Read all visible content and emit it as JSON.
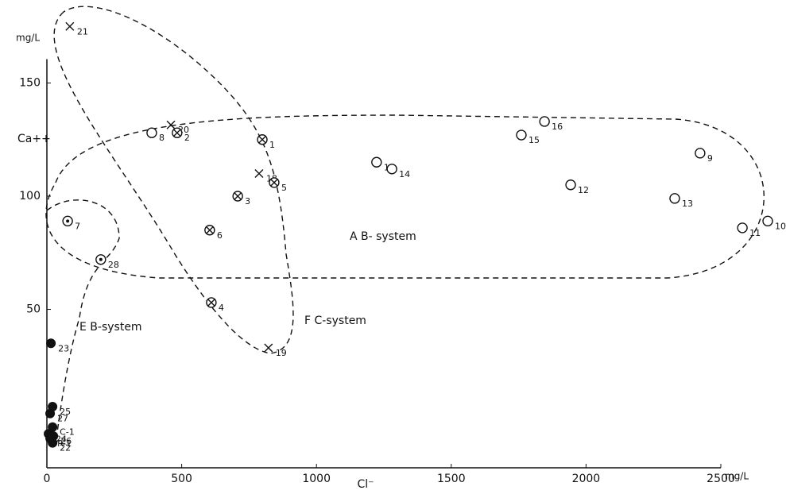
{
  "chart_data": {
    "type": "scatter",
    "y_label": "Ca++",
    "y_unit": "mg/L",
    "x_label": "Cl⁻",
    "x_unit": "mg/L",
    "annotations": [
      "A B- system",
      "E B-system",
      "F C-system"
    ],
    "xlim": [
      0,
      2730
    ],
    "ylim": [
      -20,
      180
    ],
    "xticks": [
      0,
      500,
      1000,
      1500,
      2000,
      2500
    ],
    "yticks": [
      50,
      100,
      150
    ],
    "color": "#111111",
    "series": [
      {
        "marker": "x",
        "labels": [
          "21",
          "20",
          "18",
          "19"
        ],
        "x": [
          85,
          460,
          787,
          822
        ],
        "y": [
          175,
          131.5,
          110,
          33
        ]
      },
      {
        "marker": "otimes",
        "labels": [
          "2",
          "1",
          "5",
          "3",
          "6",
          "4"
        ],
        "x": [
          483,
          799,
          843,
          708,
          604,
          610
        ],
        "y": [
          128,
          125,
          106,
          100,
          85,
          53
        ]
      },
      {
        "marker": "circle",
        "labels": [
          "8",
          "17",
          "14",
          "15",
          "16",
          "12",
          "9",
          "13",
          "11",
          "10"
        ],
        "x": [
          389,
          1223,
          1280,
          1760,
          1846,
          1943,
          2423,
          2329,
          2580,
          2674
        ],
        "y": [
          128,
          115,
          112,
          127,
          133,
          105,
          119,
          99,
          86,
          89
        ]
      },
      {
        "marker": "odot",
        "labels": [
          "7",
          "28"
        ],
        "x": [
          77,
          200
        ],
        "y": [
          89,
          72
        ]
      },
      {
        "marker": "filled",
        "labels": [
          "23",
          "25",
          "27",
          "C-1",
          "24",
          "26",
          "R-1",
          "22"
        ],
        "x": [
          15,
          21,
          12,
          21,
          6,
          24,
          12,
          21
        ],
        "y": [
          35,
          7,
          4,
          -2,
          -5,
          -6,
          -7,
          -9
        ]
      }
    ]
  }
}
